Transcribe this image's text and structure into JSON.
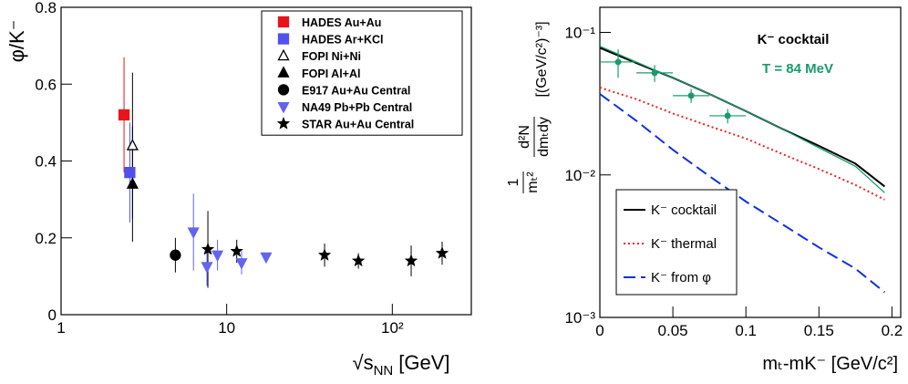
{
  "chart_data": [
    {
      "type": "scatter",
      "x_log": true,
      "y_label": "φ/K⁻",
      "x_label": "√s",
      "x_label_sub": "NN",
      "x_label_unit": "[GeV]",
      "xlim": [
        1,
        300
      ],
      "xticks": [
        1,
        10,
        {
          "value": 100,
          "label": "10²"
        }
      ],
      "ylim": [
        0,
        0.8
      ],
      "yticks": [
        0,
        0.2,
        0.4,
        0.6,
        0.8
      ],
      "legend": "top-right",
      "series": [
        {
          "name": "HADES Au+Au",
          "color": "#e8141b",
          "marker": "square",
          "filled": true,
          "x": [
            2.4
          ],
          "values": [
            0.52
          ],
          "errors": [
            0.15
          ]
        },
        {
          "name": "HADES Ar+KCl",
          "color": "#5050ee",
          "marker": "square",
          "filled": true,
          "x": [
            2.6
          ],
          "values": [
            0.37
          ],
          "errors": [
            0.13
          ]
        },
        {
          "name": "FOPI Ni+Ni",
          "color": "#000000",
          "marker": "triangle-up",
          "filled": false,
          "x": [
            2.7
          ],
          "values": [
            0.44
          ],
          "errors": [
            0.19
          ]
        },
        {
          "name": "FOPI Al+Al",
          "color": "#000000",
          "marker": "triangle-up",
          "filled": true,
          "x": [
            2.7
          ],
          "values": [
            0.34
          ],
          "errors": [
            0.15
          ]
        },
        {
          "name": "E917 Au+Au Central",
          "color": "#000000",
          "marker": "circle",
          "filled": true,
          "x": [
            4.9
          ],
          "values": [
            0.155
          ],
          "errors": [
            0.045
          ]
        },
        {
          "name": "NA49 Pb+Pb Central",
          "color": "#6464f0",
          "marker": "triangle-down",
          "filled": true,
          "x": [
            6.3,
            7.6,
            8.8,
            12.3,
            17.3
          ],
          "values": [
            0.215,
            0.125,
            0.155,
            0.135,
            0.15
          ],
          "errors": [
            0.1,
            0.05,
            0.04,
            0.03,
            0.01
          ]
        },
        {
          "name": "STAR Au+Au Central",
          "color": "#000000",
          "marker": "star",
          "filled": true,
          "x": [
            7.7,
            11.5,
            39,
            62.4,
            130,
            200
          ],
          "values": [
            0.17,
            0.165,
            0.155,
            0.14,
            0.14,
            0.16
          ],
          "errors": [
            0.1,
            0.03,
            0.03,
            0.02,
            0.04,
            0.03
          ]
        }
      ]
    },
    {
      "type": "line",
      "y_log": true,
      "x_label": "mₜ-mK⁻ [GeV/c²]",
      "y_label_frac_num": "1",
      "y_label_frac_den": "mₜ²",
      "y_label_d_num": "d²N",
      "y_label_d_den": "dmₜdy",
      "y_label": "[(GeV/c²)⁻³]",
      "annotations": [
        {
          "text": "K⁻ cocktail",
          "color": "#000000"
        },
        {
          "text": "T = 84 MeV",
          "color": "#1a9a6c"
        }
      ],
      "xlim": [
        0,
        0.206
      ],
      "xticks": [
        0,
        0.05,
        0.1,
        0.15,
        0.2
      ],
      "ylim": [
        0.001,
        0.15
      ],
      "yticks": [
        {
          "value": 0.001,
          "label": "10⁻³"
        },
        {
          "value": 0.01,
          "label": "10⁻²"
        },
        {
          "value": 0.1,
          "label": "10⁻¹"
        }
      ],
      "legend": "bottom-left",
      "x": [
        0,
        0.025,
        0.05,
        0.075,
        0.1,
        0.125,
        0.15,
        0.175,
        0.195
      ],
      "series": [
        {
          "name": "K⁻ cocktail",
          "color": "#000000",
          "dash": "solid",
          "values": [
            0.078,
            0.061,
            0.048,
            0.037,
            0.028,
            0.021,
            0.016,
            0.012,
            0.0083
          ]
        },
        {
          "color": "#1a9a6c",
          "dash": "solid",
          "values": [
            0.08,
            0.062,
            0.048,
            0.037,
            0.028,
            0.021,
            0.0155,
            0.0115,
            0.0075
          ]
        },
        {
          "name": "K⁻ thermal",
          "color": "#ee2222",
          "dash": "dotted",
          "values": [
            0.041,
            0.034,
            0.027,
            0.022,
            0.018,
            0.014,
            0.011,
            0.0085,
            0.0067
          ]
        },
        {
          "name": "K⁻ from φ",
          "color": "#1030e0",
          "dash": "dashed",
          "values": [
            0.037,
            0.024,
            0.015,
            0.0098,
            0.0065,
            0.0045,
            0.0031,
            0.0022,
            0.0015
          ]
        }
      ],
      "points": {
        "color": "#1a9a6c",
        "x": [
          0.0125,
          0.0375,
          0.0625,
          0.0875
        ],
        "values": [
          0.062,
          0.052,
          0.036,
          0.026
        ],
        "errors": [
          0.014,
          0.007,
          0.004,
          0.003
        ],
        "x_errors": [
          0.0125,
          0.0125,
          0.0125,
          0.0125
        ]
      }
    }
  ]
}
